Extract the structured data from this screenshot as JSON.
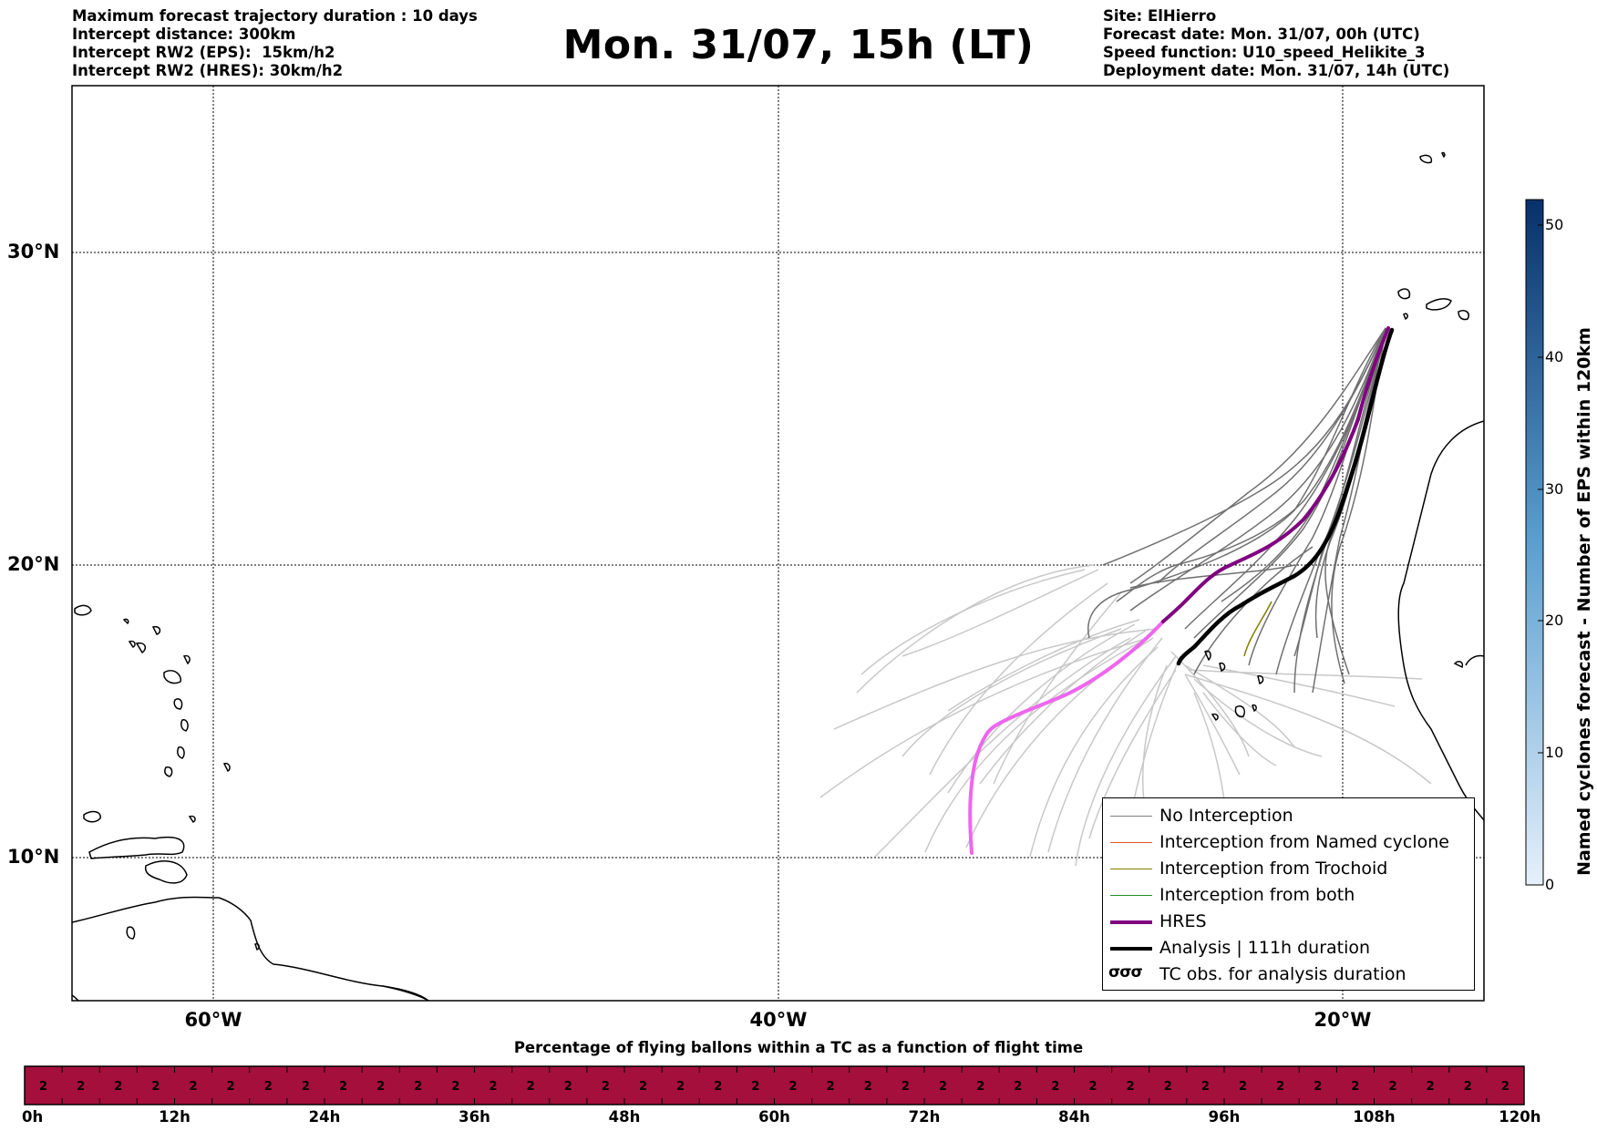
{
  "header": {
    "left_lines": [
      "Maximum forecast trajectory duration : 10 days",
      "Intercept distance: 300km",
      "Intercept RW2 (EPS):  15km/h2",
      "Intercept RW2 (HRES): 30km/h2"
    ],
    "title": "Mon. 31/07, 15h (LT)",
    "right_lines": [
      "Site: ElHierro",
      "Forecast date: Mon. 31/07, 00h (UTC)",
      "Speed function: U10_speed_Helikite_3",
      "Deployment date: Mon. 31/07, 14h (UTC)"
    ]
  },
  "map": {
    "lat_labels": [
      "30°N",
      "20°N",
      "10°N"
    ],
    "lon_labels": [
      "60°W",
      "40°W",
      "20°W"
    ],
    "gridlines": true
  },
  "legend": {
    "items": [
      {
        "label": "No Interception",
        "color": "#808080",
        "width": 1.5
      },
      {
        "label": "Interception from Named cyclone",
        "color": "#e8521a",
        "width": 1.5
      },
      {
        "label": "Interception from Trochoid",
        "color": "#808000",
        "width": 1.5
      },
      {
        "label": "Interception from both",
        "color": "#228b22",
        "width": 1.5
      },
      {
        "label": "HRES",
        "color": "#800080",
        "width": 4
      },
      {
        "label": "Analysis | 111h duration",
        "color": "#000000",
        "width": 4
      }
    ],
    "tc_symbol": "σσσ",
    "tc_label": "TC obs. for analysis duration"
  },
  "colorbar": {
    "title": "Named cyclones forecast - Number of EPS within 120km",
    "ticks": [
      "0",
      "10",
      "20",
      "30",
      "40",
      "50"
    ],
    "color_low": "#e6f0fa",
    "color_high": "#08306b"
  },
  "flight_bar": {
    "title": "Percentage of flying ballons within a TC as a function of flight time",
    "cell_value": "2",
    "cell_count": 40,
    "color": "#a50f3c",
    "hour_labels": [
      "0h",
      "12h",
      "24h",
      "36h",
      "48h",
      "60h",
      "72h",
      "84h",
      "96h",
      "108h",
      "120h"
    ]
  }
}
